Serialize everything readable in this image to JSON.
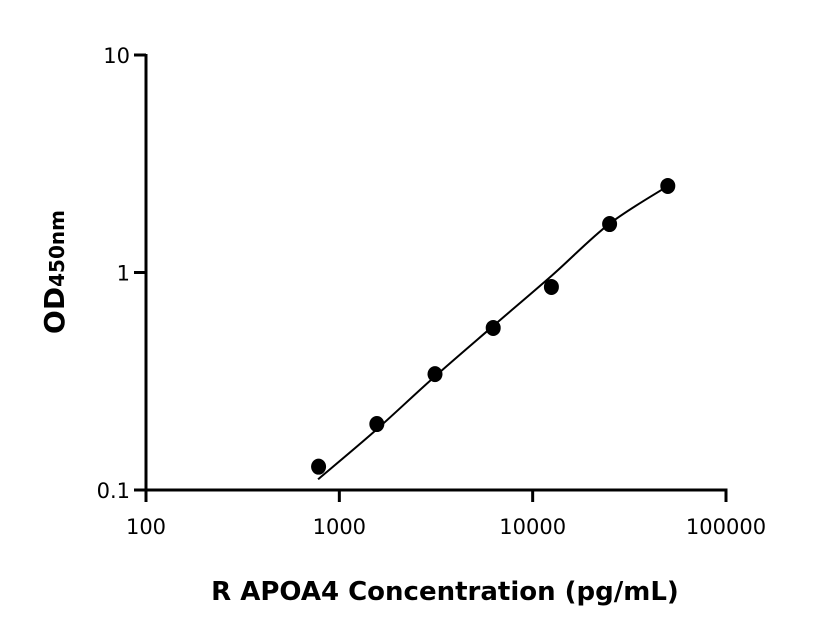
{
  "chart_data": {
    "type": "scatter",
    "title": "",
    "xlabel": "R APOA4 Concentration (pg/mL)",
    "ylabel_main": "OD",
    "ylabel_sub": "450nm",
    "x_scale": "log",
    "y_scale": "log",
    "xlim": [
      100,
      100000
    ],
    "ylim": [
      0.1,
      10
    ],
    "x_ticks": [
      {
        "value": 100,
        "label": "100"
      },
      {
        "value": 1000,
        "label": "1000"
      },
      {
        "value": 10000,
        "label": "10000"
      },
      {
        "value": 100000,
        "label": "100000"
      }
    ],
    "y_ticks": [
      {
        "value": 0.1,
        "label": "0.1"
      },
      {
        "value": 1,
        "label": "1"
      },
      {
        "value": 10,
        "label": "10"
      }
    ],
    "grid": false,
    "points": {
      "x": [
        781,
        1563,
        3125,
        6250,
        12500,
        25000,
        50000
      ],
      "y": [
        0.128,
        0.201,
        0.341,
        0.556,
        0.858,
        1.67,
        2.5
      ]
    },
    "fit_curve": {
      "x": [
        776,
        1530,
        3054,
        6166,
        12600,
        24850,
        50100
      ],
      "y": [
        0.112,
        0.187,
        0.327,
        0.562,
        0.97,
        1.67,
        2.5
      ]
    },
    "color": "#000000"
  }
}
